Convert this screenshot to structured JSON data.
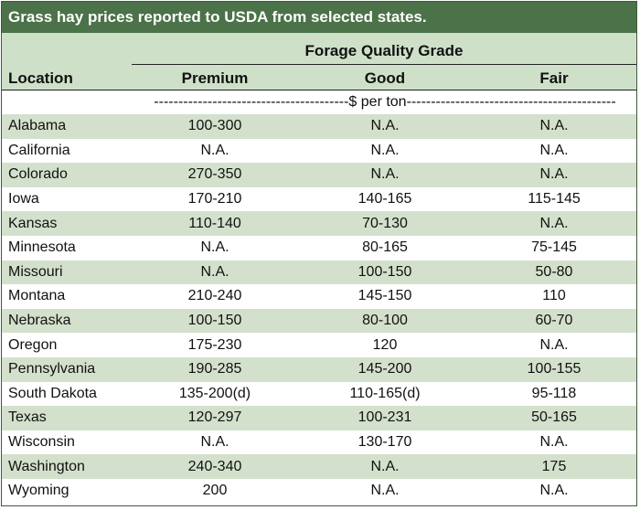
{
  "title": "Grass hay prices reported to USDA from selected states.",
  "header": {
    "group_label": "Forage Quality Grade",
    "location_label": "Location",
    "columns": [
      "Premium",
      "Good",
      "Fair"
    ]
  },
  "unit_label": "----------------------------------------$ per ton-------------------------------------------",
  "rows": [
    {
      "location": "Alabama",
      "premium": "100-300",
      "good": "N.A.",
      "fair": "N.A."
    },
    {
      "location": "California",
      "premium": "N.A.",
      "good": "N.A.",
      "fair": "N.A."
    },
    {
      "location": "Colorado",
      "premium": "270-350",
      "good": "N.A.",
      "fair": "N.A."
    },
    {
      "location": "Iowa",
      "premium": "170-210",
      "good": "140-165",
      "fair": "115-145"
    },
    {
      "location": "Kansas",
      "premium": "110-140",
      "good": "70-130",
      "fair": "N.A."
    },
    {
      "location": "Minnesota",
      "premium": "N.A.",
      "good": "80-165",
      "fair": "75-145"
    },
    {
      "location": "Missouri",
      "premium": "N.A.",
      "good": "100-150",
      "fair": "50-80"
    },
    {
      "location": "Montana",
      "premium": "210-240",
      "good": "145-150",
      "fair": "110"
    },
    {
      "location": "Nebraska",
      "premium": "100-150",
      "good": "80-100",
      "fair": "60-70"
    },
    {
      "location": "Oregon",
      "premium": "175-230",
      "good": "120",
      "fair": "N.A."
    },
    {
      "location": "Pennsylvania",
      "premium": "190-285",
      "good": "145-200",
      "fair": "100-155"
    },
    {
      "location": "South Dakota",
      "premium": "135-200(d)",
      "good": "110-165(d)",
      "fair": "95-118"
    },
    {
      "location": "Texas",
      "premium": "120-297",
      "good": "100-231",
      "fair": "50-165"
    },
    {
      "location": "Wisconsin",
      "premium": "N.A.",
      "good": "130-170",
      "fair": "N.A."
    },
    {
      "location": "Washington",
      "premium": "240-340",
      "good": "N.A.",
      "fair": "175"
    },
    {
      "location": "Wyoming",
      "premium": "200",
      "good": "N.A.",
      "fair": "N.A."
    }
  ],
  "colors": {
    "title_bg": "#4b7248",
    "header_bg": "#cfe0c8",
    "stripe_bg": "#d3e1cc"
  }
}
